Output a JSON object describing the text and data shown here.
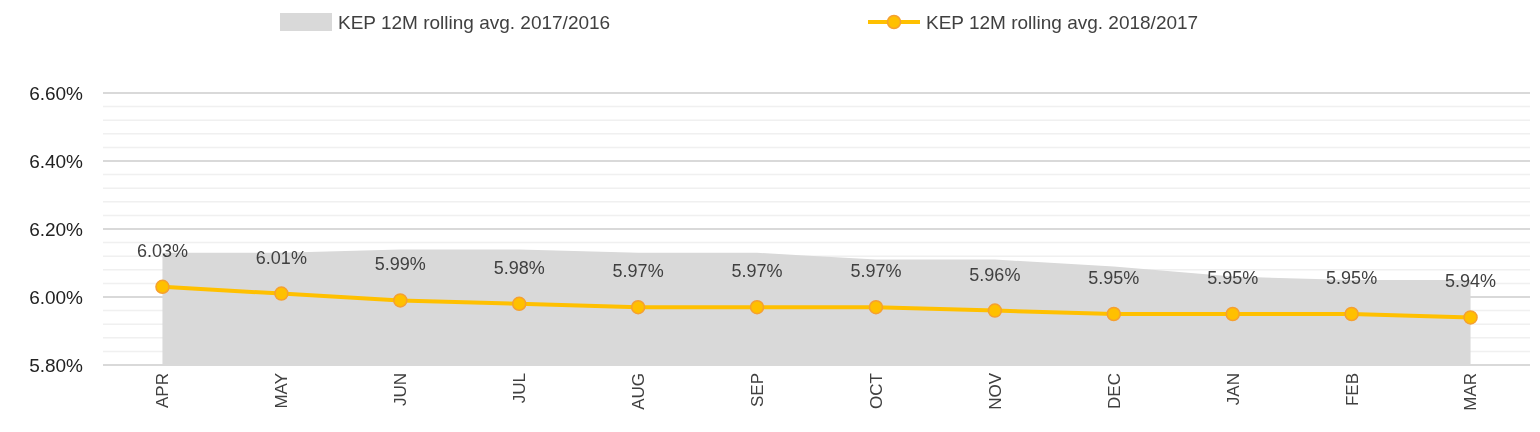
{
  "chart_data": {
    "type": "line",
    "categories": [
      "APR",
      "MAY",
      "JUN",
      "JUL",
      "AUG",
      "SEP",
      "OCT",
      "NOV",
      "DEC",
      "JAN",
      "FEB",
      "MAR"
    ],
    "series": [
      {
        "name": "KEP 12M rolling avg. 2017/2016",
        "type": "area",
        "color": "#d9d9d9",
        "values": [
          6.13,
          6.13,
          6.14,
          6.14,
          6.13,
          6.13,
          6.11,
          6.11,
          6.09,
          6.06,
          6.05,
          6.05
        ]
      },
      {
        "name": "KEP 12M rolling avg. 2018/2017",
        "color": "#ffc000",
        "marker": "circle",
        "values": [
          6.03,
          6.01,
          5.99,
          5.98,
          5.97,
          5.97,
          5.97,
          5.96,
          5.95,
          5.95,
          5.95,
          5.94
        ],
        "value_labels": [
          "6.03%",
          "6.01%",
          "5.99%",
          "5.98%",
          "5.97%",
          "5.97%",
          "5.97%",
          "5.96%",
          "5.95%",
          "5.95%",
          "5.95%",
          "5.94%"
        ]
      }
    ],
    "ylim": [
      5.8,
      6.6
    ],
    "yticks": [
      {
        "value": 5.8,
        "label": "5.80%"
      },
      {
        "value": 5.84,
        "label": null
      },
      {
        "value": 5.88,
        "label": null
      },
      {
        "value": 5.92,
        "label": null
      },
      {
        "value": 5.96,
        "label": null
      },
      {
        "value": 6.0,
        "label": "6.00%"
      },
      {
        "value": 6.04,
        "label": null
      },
      {
        "value": 6.08,
        "label": null
      },
      {
        "value": 6.12,
        "label": null
      },
      {
        "value": 6.16,
        "label": null
      },
      {
        "value": 6.2,
        "label": "6.20%"
      },
      {
        "value": 6.24,
        "label": null
      },
      {
        "value": 6.28,
        "label": null
      },
      {
        "value": 6.32,
        "label": null
      },
      {
        "value": 6.36,
        "label": null
      },
      {
        "value": 6.4,
        "label": "6.40%"
      },
      {
        "value": 6.44,
        "label": null
      },
      {
        "value": 6.48,
        "label": null
      },
      {
        "value": 6.52,
        "label": null
      },
      {
        "value": 6.56,
        "label": null
      },
      {
        "value": 6.6,
        "label": "6.60%"
      }
    ],
    "grid": true,
    "legend": "top"
  }
}
